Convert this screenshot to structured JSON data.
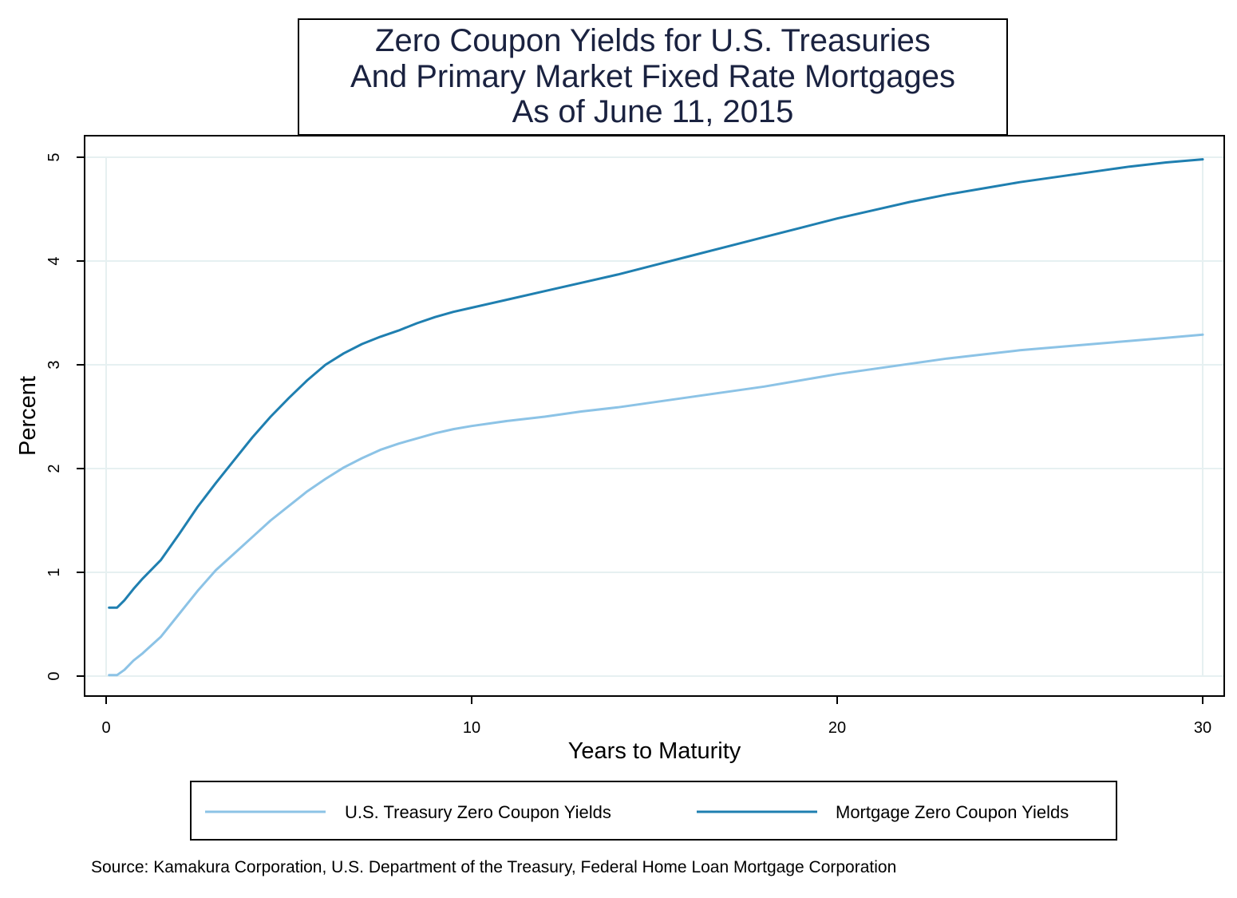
{
  "chart_data": {
    "type": "line",
    "title_lines": [
      "Zero Coupon Yields for U.S. Treasuries",
      "And Primary Market Fixed Rate Mortgages",
      "As of June 11, 2015"
    ],
    "xlabel": "Years to Maturity",
    "ylabel": "Percent",
    "xlim": [
      0,
      30
    ],
    "ylim": [
      0,
      5
    ],
    "x_ticks": [
      "0",
      "10",
      "20",
      "30"
    ],
    "y_ticks": [
      "0",
      "1",
      "2",
      "3",
      "4",
      "5"
    ],
    "grid": "horizontal",
    "legend_position": "bottom",
    "series": [
      {
        "name": "U.S. Treasury Zero Coupon Yields",
        "color": "#8cc3e6",
        "x": [
          0.08,
          0.3,
          0.5,
          0.75,
          1,
          1.5,
          2,
          2.5,
          3,
          3.5,
          4,
          4.5,
          5,
          5.5,
          6,
          6.5,
          7,
          7.5,
          8,
          8.5,
          9,
          9.5,
          10,
          11,
          12,
          13,
          14,
          15,
          16,
          17,
          18,
          19,
          20,
          21,
          22,
          23,
          24,
          25,
          26,
          27,
          28,
          29,
          30
        ],
        "y": [
          0.01,
          0.01,
          0.06,
          0.15,
          0.22,
          0.38,
          0.6,
          0.82,
          1.02,
          1.18,
          1.34,
          1.5,
          1.64,
          1.78,
          1.9,
          2.01,
          2.1,
          2.18,
          2.24,
          2.29,
          2.34,
          2.38,
          2.41,
          2.46,
          2.5,
          2.55,
          2.59,
          2.64,
          2.69,
          2.74,
          2.79,
          2.85,
          2.91,
          2.96,
          3.01,
          3.06,
          3.1,
          3.14,
          3.17,
          3.2,
          3.23,
          3.26,
          3.29
        ]
      },
      {
        "name": "Mortgage Zero Coupon Yields",
        "color": "#1f7fb0",
        "x": [
          0.08,
          0.3,
          0.5,
          0.75,
          1,
          1.5,
          2,
          2.5,
          3,
          3.5,
          4,
          4.5,
          5,
          5.5,
          6,
          6.5,
          7,
          7.5,
          8,
          8.5,
          9,
          9.5,
          10,
          11,
          12,
          13,
          14,
          15,
          16,
          17,
          18,
          19,
          20,
          21,
          22,
          23,
          24,
          25,
          26,
          27,
          28,
          29,
          30
        ],
        "y": [
          0.66,
          0.66,
          0.73,
          0.84,
          0.94,
          1.12,
          1.37,
          1.63,
          1.86,
          2.08,
          2.3,
          2.5,
          2.68,
          2.85,
          3.0,
          3.11,
          3.2,
          3.27,
          3.33,
          3.4,
          3.46,
          3.51,
          3.55,
          3.63,
          3.71,
          3.79,
          3.87,
          3.96,
          4.05,
          4.14,
          4.23,
          4.32,
          4.41,
          4.49,
          4.57,
          4.64,
          4.7,
          4.76,
          4.81,
          4.86,
          4.91,
          4.95,
          4.98
        ]
      }
    ]
  },
  "source": "Source: Kamakura Corporation, U.S. Department of the Treasury, Federal Home Loan Mortgage Corporation"
}
